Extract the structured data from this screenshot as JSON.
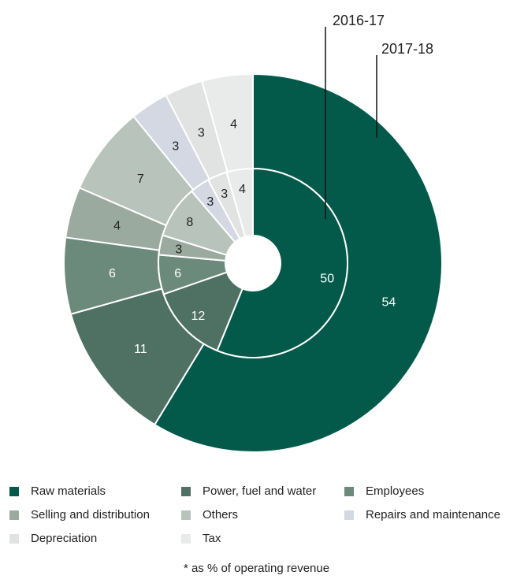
{
  "chart_data": {
    "type": "pie",
    "variant": "nested-donut",
    "categories": [
      "Raw materials",
      "Power, fuel and water",
      "Employees",
      "Selling and distribution",
      "Others",
      "Repairs and maintenance",
      "Depreciation",
      "Tax"
    ],
    "colors": [
      "#035a4b",
      "#4f7163",
      "#6b8a7c",
      "#9aaa9f",
      "#b8c3bc",
      "#d3d8e2",
      "#e0e3e1",
      "#e8ebea"
    ],
    "series": [
      {
        "name": "2016-17",
        "ring": "inner",
        "values": [
          50,
          12,
          6,
          3,
          8,
          3,
          3,
          4
        ]
      },
      {
        "name": "2017-18",
        "ring": "outer",
        "values": [
          54,
          11,
          6,
          4,
          7,
          3,
          3,
          4
        ]
      }
    ],
    "legend_position": "bottom",
    "footnote": "* as % of operating revenue"
  }
}
